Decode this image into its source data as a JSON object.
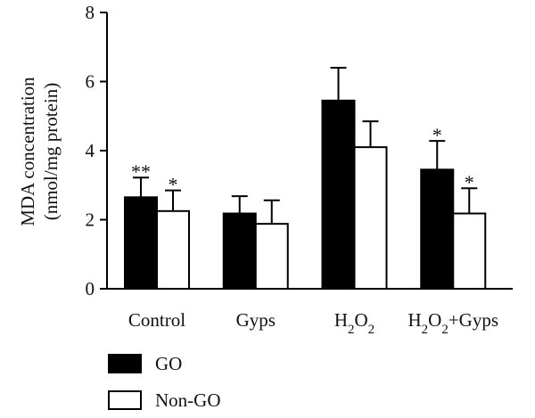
{
  "chart_data": {
    "type": "bar",
    "categories": [
      "Control",
      "Gyps",
      "H2O2",
      "H2O2+Gyps"
    ],
    "series": [
      {
        "name": "GO",
        "values": [
          2.65,
          2.18,
          5.45,
          3.45
        ],
        "errors": [
          0.57,
          0.5,
          0.95,
          0.83
        ],
        "annotations": [
          "**",
          "",
          "",
          "*"
        ],
        "color": "#000000"
      },
      {
        "name": "Non-GO",
        "values": [
          2.25,
          1.88,
          4.1,
          2.18
        ],
        "errors": [
          0.6,
          0.68,
          0.75,
          0.73
        ],
        "annotations": [
          "*",
          "",
          "",
          "*"
        ],
        "color": "#ffffff"
      }
    ],
    "ylabel_line1": "MDA concentration",
    "ylabel_line2": "(nmol/mg protein)",
    "ylim": [
      0,
      8
    ],
    "yticks": [
      0,
      2,
      4,
      6,
      8
    ],
    "grid": false,
    "legend_position": "bottom-left"
  }
}
